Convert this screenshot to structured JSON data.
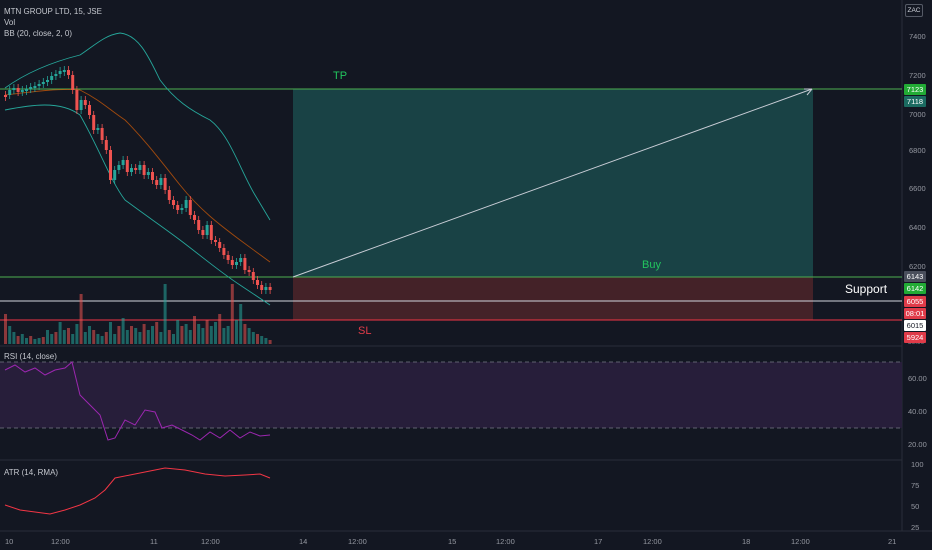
{
  "header": {
    "symbol": "MTN GROUP LTD, 15, JSE",
    "vol_label": "Vol",
    "bb_label": "BB (20, close, 2, 0)",
    "currency": "ZAC"
  },
  "price_axis": {
    "ticks": [
      "7400",
      "7200",
      "7000",
      "6800",
      "6600",
      "6400",
      "6200",
      "6000"
    ],
    "tags": {
      "tp_a": "7123",
      "tp_b": "7118",
      "entry_a": "6143",
      "entry_b": "6142",
      "support": "6055",
      "countdown": "08:01",
      "last": "6015",
      "stop": "5924"
    },
    "vol_tick": "80.00"
  },
  "annotations": {
    "tp": "TP",
    "buy": "Buy",
    "sl": "SL",
    "support": "Support"
  },
  "rsi": {
    "label": "RSI (14, close)",
    "ticks": [
      "60.00",
      "40.00",
      "20.00"
    ]
  },
  "atr": {
    "label": "ATR (14, RMA)",
    "ticks": [
      "100",
      "75",
      "50",
      "25"
    ]
  },
  "time_axis": {
    "labels": [
      "10",
      "12:00",
      "11",
      "12:00",
      "14",
      "12:00",
      "15",
      "12:00",
      "17",
      "12:00",
      "18",
      "12:00",
      "21"
    ]
  },
  "colors": {
    "background": "#131722",
    "up_candle": "#26a69a",
    "down_candle": "#ef5350",
    "tp_line": "#4caf50",
    "sl_line": "#f23645",
    "profit_zone": "#1b4a4b",
    "loss_zone": "#4a2429",
    "rsi_band": "#2a1f3d",
    "rsi_line": "#9c27b0",
    "atr_line": "#f23645",
    "bb_band": "#26a69a",
    "bb_basis": "#ff6d00"
  }
}
